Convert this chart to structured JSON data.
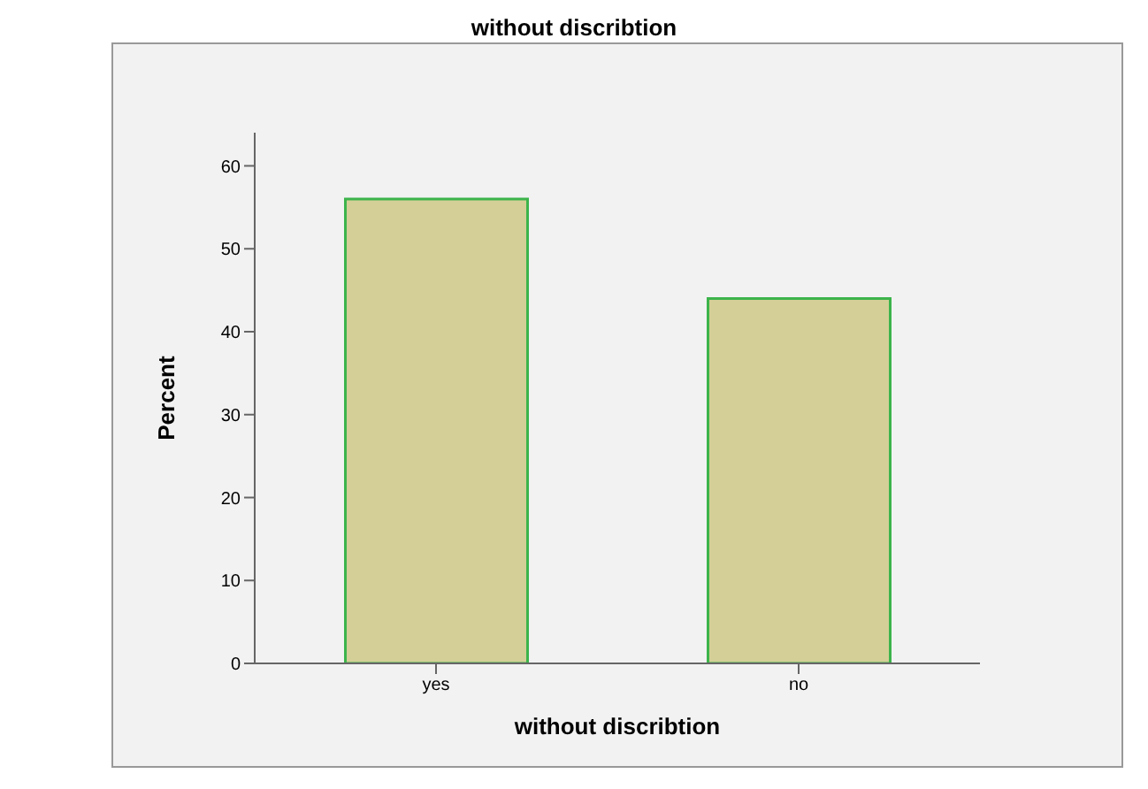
{
  "chart_data": {
    "type": "bar",
    "title": "without discribtion",
    "xlabel": "without discribtion",
    "ylabel": "Percent",
    "categories": [
      "yes",
      "no"
    ],
    "values": [
      56,
      44
    ],
    "color": "#d3cf97",
    "ylim": [
      0,
      64
    ],
    "yticks": [
      0,
      10,
      20,
      30,
      40,
      50,
      60
    ],
    "grid": false,
    "legend": false
  }
}
